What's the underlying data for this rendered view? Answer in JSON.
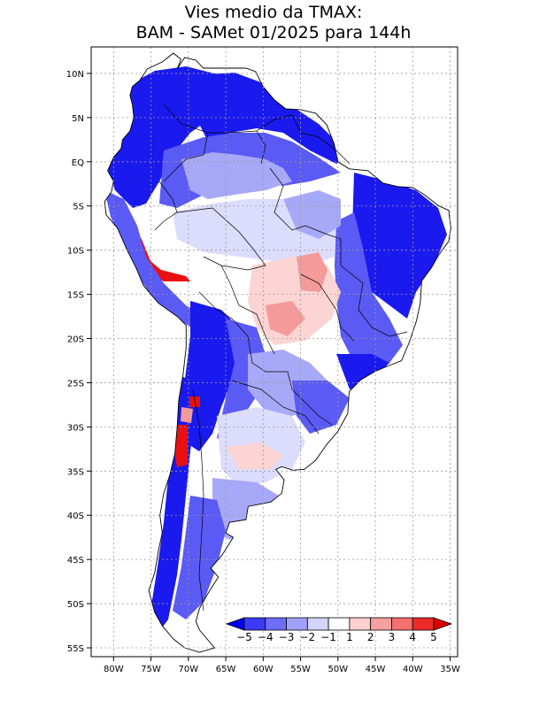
{
  "title": {
    "line1": "Vies medio da TMAX:",
    "line2": "BAM - SAMet 01/2025  para 144h"
  },
  "map": {
    "lon_range": [
      -83,
      -34
    ],
    "lat_range": [
      -56,
      13
    ],
    "lon_ticks": [
      {
        "value": -80,
        "label": "80W"
      },
      {
        "value": -75,
        "label": "75W"
      },
      {
        "value": -70,
        "label": "70W"
      },
      {
        "value": -65,
        "label": "65W"
      },
      {
        "value": -60,
        "label": "60W"
      },
      {
        "value": -55,
        "label": "55W"
      },
      {
        "value": -50,
        "label": "50W"
      },
      {
        "value": -45,
        "label": "45W"
      },
      {
        "value": -40,
        "label": "40W"
      },
      {
        "value": -35,
        "label": "35W"
      }
    ],
    "lat_ticks": [
      {
        "value": 10,
        "label": "10N"
      },
      {
        "value": 5,
        "label": "5N"
      },
      {
        "value": 0,
        "label": "EQ"
      },
      {
        "value": -5,
        "label": "5S"
      },
      {
        "value": -10,
        "label": "10S"
      },
      {
        "value": -15,
        "label": "15S"
      },
      {
        "value": -20,
        "label": "20S"
      },
      {
        "value": -25,
        "label": "25S"
      },
      {
        "value": -30,
        "label": "30S"
      },
      {
        "value": -35,
        "label": "35S"
      },
      {
        "value": -40,
        "label": "40S"
      },
      {
        "value": -45,
        "label": "45S"
      },
      {
        "value": -50,
        "label": "50S"
      },
      {
        "value": -55,
        "label": "55S"
      }
    ],
    "grid": true
  },
  "colorbar": {
    "labels": [
      "-5",
      "-4",
      "-3",
      "-2",
      "-1",
      "1",
      "2",
      "3",
      "4",
      "5"
    ],
    "colors": [
      "#0000ee",
      "#3b3bf5",
      "#6d6df8",
      "#a0a0fa",
      "#d4d4fc",
      "#ffffff",
      "#fcd0d0",
      "#f8a0a0",
      "#f57070",
      "#ee2a2a",
      "#e00000"
    ]
  },
  "colors": {
    "strong_cold": "#1a1aee",
    "cold": "#5a5af5",
    "mild_cold": "#a8a8f8",
    "light_cold": "#dcdcfc",
    "neutral": "#ffffff",
    "light_warm": "#fcd4d4",
    "warm": "#f59a9a",
    "hot": "#e81010"
  }
}
